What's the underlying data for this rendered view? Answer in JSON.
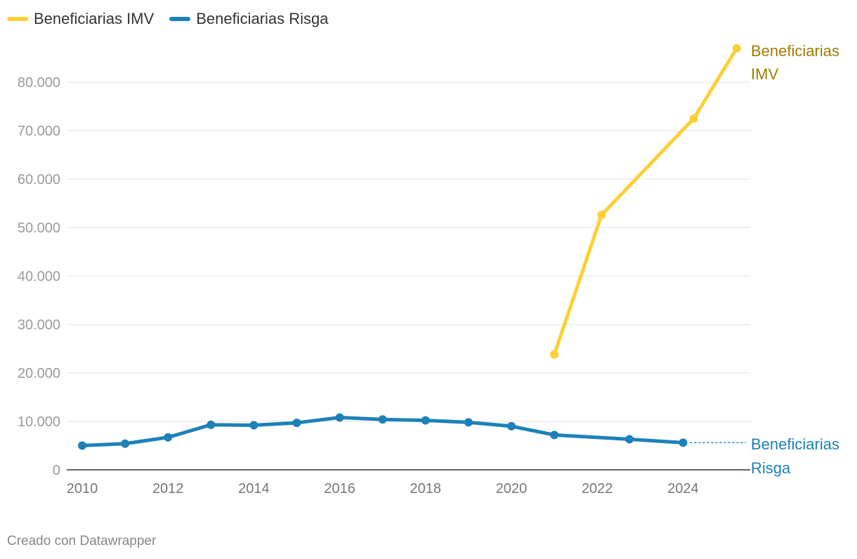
{
  "chart_data": {
    "type": "line",
    "title": "",
    "xlabel": "",
    "ylabel": "",
    "xlim": [
      2010,
      2025.5
    ],
    "ylim": [
      0,
      85000
    ],
    "y_ticks": [
      0,
      10000,
      20000,
      30000,
      40000,
      50000,
      60000,
      70000,
      80000
    ],
    "y_tick_labels": [
      "0",
      "10.000",
      "20.000",
      "30.000",
      "40.000",
      "50.000",
      "60.000",
      "70.000",
      "80.000"
    ],
    "x_ticks": [
      2010,
      2012,
      2014,
      2016,
      2018,
      2020,
      2022,
      2024
    ],
    "x_tick_labels": [
      "2010",
      "2012",
      "2014",
      "2016",
      "2018",
      "2020",
      "2022",
      "2024"
    ],
    "grid": true,
    "legend_position": "top-left",
    "series": [
      {
        "name": "Beneficiarias IMV",
        "end_label": [
          "Beneficiarias",
          "IMV"
        ],
        "color": "#fccf35",
        "label_color": "#a07c00",
        "x": [
          2021,
          2022.1,
          2024.25,
          2025.25
        ],
        "values": [
          23800,
          52600,
          72500,
          87000
        ]
      },
      {
        "name": "Beneficiarias Risga",
        "end_label": [
          "Beneficiarias",
          "Risga"
        ],
        "color": "#1d81b8",
        "label_color": "#1d81b8",
        "x": [
          2010,
          2011,
          2012,
          2013,
          2014,
          2015,
          2016,
          2017,
          2018,
          2019,
          2020,
          2021,
          2022.75,
          2024
        ],
        "values": [
          5000,
          5400,
          6700,
          9300,
          9200,
          9700,
          10800,
          10400,
          10200,
          9800,
          9000,
          7200,
          6300,
          5600
        ]
      }
    ]
  },
  "footer": "Creado con Datawrapper"
}
